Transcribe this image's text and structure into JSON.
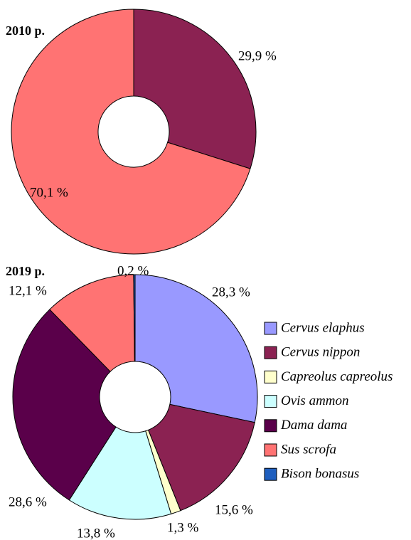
{
  "chart_data": [
    {
      "type": "donut",
      "title": "2010 р.",
      "values": [
        29.9,
        70.1
      ],
      "value_labels": [
        "29,9 %",
        "70,1 %"
      ],
      "colors": [
        "#8b2252",
        "#ff7373"
      ]
    },
    {
      "type": "donut",
      "title": "2019 р.",
      "categories": [
        "Cervus elaphus",
        "Cervus nippon",
        "Capreolus capreolus",
        "Ovis ammon",
        "Dama dama",
        "Sus scrofa",
        "Bison bonasus"
      ],
      "values": [
        28.3,
        15.6,
        1.3,
        13.8,
        28.6,
        12.1,
        0.2
      ],
      "value_labels": [
        "28,3 %",
        "15,6 %",
        "1,3 %",
        "13,8 %",
        "28,6 %",
        "12,1 %",
        "0,2 %"
      ],
      "colors": [
        "#9999ff",
        "#8b2252",
        "#ffffcc",
        "#ccffff",
        "#5a004a",
        "#ff7373",
        "#1f5fbf"
      ],
      "legend": "right"
    }
  ]
}
